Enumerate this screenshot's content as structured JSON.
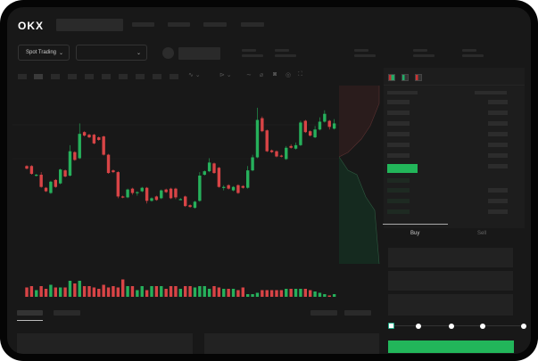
{
  "brand": {
    "logo": "OKX"
  },
  "header": {
    "selector_label": "Spot Trading",
    "chevron": "chevron-down-icon"
  },
  "trade": {
    "tabs": [
      {
        "label": "Buy",
        "active": true
      },
      {
        "label": "Sell",
        "active": false
      }
    ],
    "slider_value": 0,
    "submit_color": "#22b65a"
  },
  "colors": {
    "up": "#26b05b",
    "down": "#d84446",
    "background": "#181818"
  },
  "chart_data": {
    "type": "candlestick",
    "title": "",
    "ohlc": [
      [
        118,
        115,
        119,
        114
      ],
      [
        118,
        109,
        119,
        108
      ],
      [
        107,
        108,
        109,
        106
      ],
      [
        108,
        94,
        111,
        93
      ],
      [
        93,
        89,
        94,
        88
      ],
      [
        87,
        100,
        101,
        86
      ],
      [
        102,
        94,
        103,
        93
      ],
      [
        98,
        114,
        115,
        97
      ],
      [
        113,
        106,
        114,
        105
      ],
      [
        107,
        135,
        142,
        106
      ],
      [
        134,
        125,
        135,
        124
      ],
      [
        127,
        155,
        167,
        126
      ],
      [
        157,
        153,
        158,
        152
      ],
      [
        154,
        151,
        155,
        150
      ],
      [
        154,
        144,
        155,
        143
      ],
      [
        151,
        148,
        152,
        147
      ],
      [
        152,
        131,
        153,
        130
      ],
      [
        131,
        110,
        132,
        109
      ],
      [
        113,
        111,
        114,
        110
      ],
      [
        111,
        83,
        112,
        81
      ],
      [
        83,
        82,
        84,
        81
      ],
      [
        82,
        91,
        92,
        81
      ],
      [
        92,
        87,
        93,
        85
      ],
      [
        88,
        88,
        89,
        84
      ],
      [
        89,
        93,
        94,
        88
      ],
      [
        93,
        78,
        94,
        75
      ],
      [
        78,
        81,
        82,
        77
      ],
      [
        83,
        79,
        84,
        78
      ],
      [
        81,
        90,
        91,
        80
      ],
      [
        91,
        88,
        92,
        87
      ],
      [
        92,
        81,
        93,
        80
      ],
      [
        92,
        82,
        93,
        80
      ],
      [
        80,
        80,
        81,
        79
      ],
      [
        83,
        72,
        84,
        71
      ],
      [
        73,
        71,
        74,
        70
      ],
      [
        70,
        77,
        78,
        69
      ],
      [
        78,
        107,
        111,
        77
      ],
      [
        108,
        112,
        113,
        107
      ],
      [
        112,
        122,
        127,
        111
      ],
      [
        121,
        110,
        122,
        109
      ],
      [
        116,
        94,
        117,
        93
      ],
      [
        93,
        94,
        96,
        90
      ],
      [
        96,
        92,
        97,
        91
      ],
      [
        90,
        94,
        95,
        89
      ],
      [
        96,
        87,
        97,
        86
      ],
      [
        95,
        93,
        96,
        92
      ],
      [
        93,
        113,
        118,
        92
      ],
      [
        113,
        128,
        131,
        112
      ],
      [
        128,
        171,
        185,
        127
      ],
      [
        173,
        158,
        175,
        157
      ],
      [
        159,
        135,
        160,
        134
      ],
      [
        136,
        134,
        137,
        133
      ],
      [
        135,
        129,
        136,
        128
      ],
      [
        130,
        129,
        131,
        128
      ],
      [
        126,
        139,
        141,
        125
      ],
      [
        141,
        139,
        143,
        138
      ],
      [
        138,
        142,
        145,
        137
      ],
      [
        142,
        168,
        170,
        141
      ],
      [
        170,
        157,
        171,
        156
      ],
      [
        158,
        153,
        159,
        152
      ],
      [
        151,
        160,
        164,
        150
      ],
      [
        160,
        169,
        174,
        159
      ],
      [
        169,
        178,
        182,
        168
      ],
      [
        170,
        163,
        171,
        160
      ],
      [
        161,
        167,
        172,
        160
      ]
    ],
    "volume": [
      7,
      8,
      5,
      8,
      6,
      9,
      7,
      7,
      7,
      12,
      10,
      12,
      8,
      8,
      7,
      6,
      9,
      7,
      8,
      7,
      13,
      8,
      8,
      5,
      8,
      5,
      8,
      8,
      8,
      6,
      8,
      8,
      6,
      8,
      8,
      7,
      8,
      8,
      6,
      8,
      7,
      6,
      6,
      6,
      5,
      7,
      2,
      2,
      3,
      5,
      5,
      5,
      5,
      5,
      6,
      6,
      6,
      6,
      6,
      5,
      4,
      3,
      2,
      1,
      2
    ]
  }
}
